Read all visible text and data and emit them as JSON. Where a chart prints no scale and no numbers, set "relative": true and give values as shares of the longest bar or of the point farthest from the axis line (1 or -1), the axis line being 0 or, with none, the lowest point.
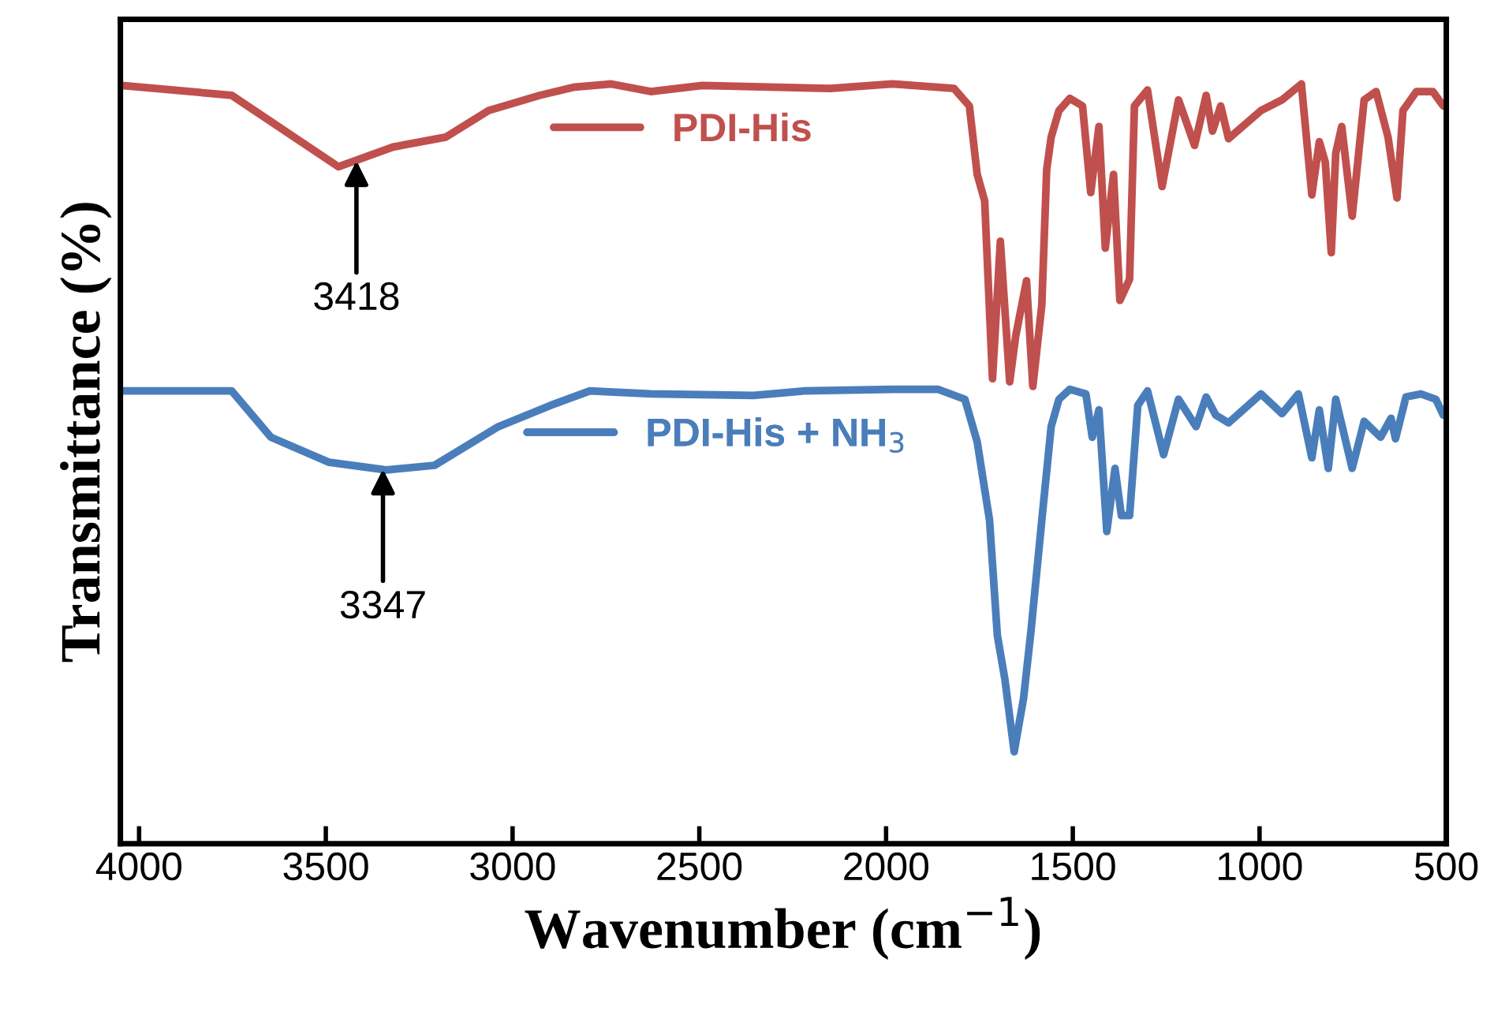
{
  "chart_data": {
    "type": "line",
    "relative": true,
    "xlabel": "Wavenumber (cm$^{−1}$)",
    "ylabel": "Transmittance (%)",
    "xlim": [
      4050,
      500
    ],
    "xticks": [
      4000,
      3500,
      3000,
      2500,
      2000,
      1500,
      1000,
      500
    ],
    "grid": false,
    "legend": "top",
    "series": [
      {
        "name": "PDI-His",
        "color": "#c0504d",
        "x": [
          4046,
          3752,
          3466,
          3320,
          3179,
          3064,
          2927,
          2833,
          2736,
          2630,
          2492,
          2149,
          1983,
          1818,
          1777,
          1756,
          1736,
          1715,
          1694,
          1669,
          1653,
          1624,
          1607,
          1583,
          1570,
          1558,
          1537,
          1508,
          1474,
          1452,
          1430,
          1413,
          1391,
          1374,
          1348,
          1335,
          1300,
          1261,
          1217,
          1174,
          1143,
          1126,
          1104,
          1083,
          996,
          940,
          888,
          860,
          840,
          824,
          808,
          796,
          780,
          752,
          720,
          688,
          656,
          632,
          616,
          580,
          536,
          508
        ],
        "values": [
          0.998,
          0.985,
          0.891,
          0.917,
          0.93,
          0.965,
          0.985,
          0.996,
          1,
          0.99,
          0.998,
          0.994,
          1,
          0.994,
          0.971,
          0.881,
          0.846,
          0.612,
          0.793,
          0.608,
          0.668,
          0.741,
          0.602,
          0.709,
          0.887,
          0.93,
          0.965,
          0.981,
          0.971,
          0.857,
          0.944,
          0.784,
          0.881,
          0.715,
          0.743,
          0.971,
          0.992,
          0.865,
          0.979,
          0.919,
          0.985,
          0.938,
          0.971,
          0.928,
          0.965,
          0.979,
          1,
          0.854,
          0.924,
          0.897,
          0.778,
          0.909,
          0.944,
          0.826,
          0.979,
          0.99,
          0.93,
          0.85,
          0.965,
          0.99,
          0.99,
          0.971
        ]
      },
      {
        "name": "PDI-His + NH$_{3}$",
        "color": "#4a7ebb",
        "x": [
          4046,
          3752,
          3647,
          3491,
          3338,
          3209,
          3038,
          2898,
          2793,
          2630,
          2355,
          2219,
          1983,
          1860,
          1789,
          1756,
          1723,
          1702,
          1682,
          1657,
          1632,
          1612,
          1583,
          1558,
          1537,
          1508,
          1465,
          1448,
          1430,
          1409,
          1387,
          1370,
          1348,
          1326,
          1300,
          1257,
          1217,
          1170,
          1143,
          1117,
          1083,
          996,
          940,
          896,
          860,
          840,
          816,
          796,
          752,
          720,
          676,
          648,
          636,
          608,
          568,
          528,
          508
        ],
        "values": [
          0.596,
          0.596,
          0.535,
          0.502,
          0.492,
          0.498,
          0.549,
          0.577,
          0.596,
          0.592,
          0.59,
          0.596,
          0.598,
          0.598,
          0.585,
          0.529,
          0.426,
          0.274,
          0.217,
          0.121,
          0.191,
          0.28,
          0.426,
          0.549,
          0.585,
          0.598,
          0.592,
          0.535,
          0.571,
          0.411,
          0.494,
          0.432,
          0.432,
          0.577,
          0.596,
          0.512,
          0.585,
          0.549,
          0.588,
          0.564,
          0.554,
          0.592,
          0.566,
          0.592,
          0.508,
          0.571,
          0.494,
          0.585,
          0.494,
          0.556,
          0.535,
          0.56,
          0.533,
          0.588,
          0.592,
          0.585,
          0.564
        ]
      }
    ],
    "annotations": [
      {
        "text": "3418",
        "x": 3418,
        "y": 0.899
      },
      {
        "text": "3347",
        "x": 3347,
        "y": 0.493
      }
    ]
  }
}
